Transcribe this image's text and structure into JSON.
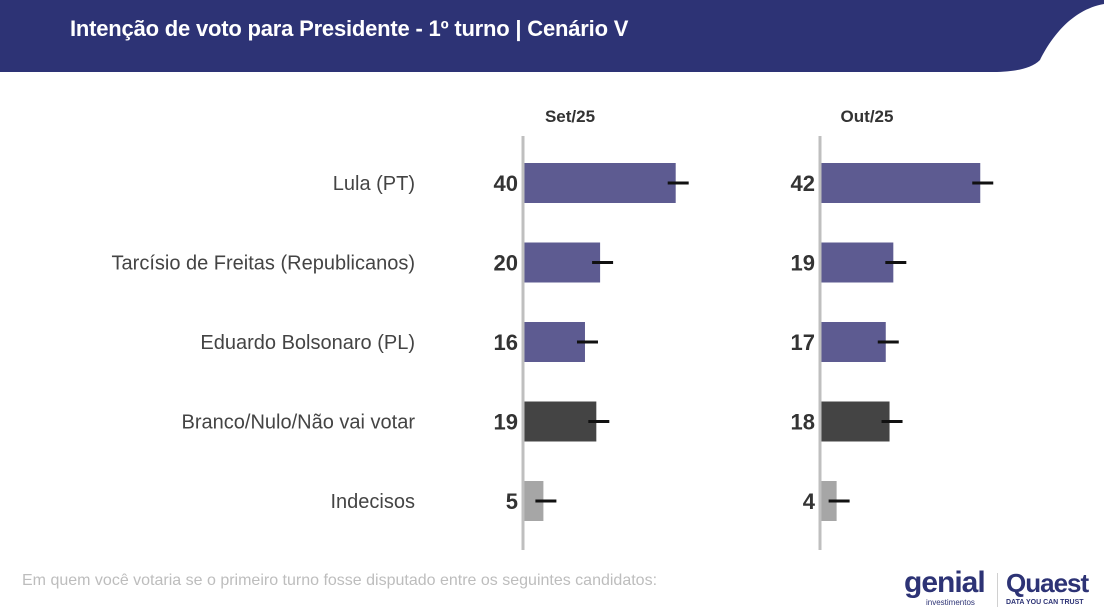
{
  "header": {
    "title": "Intenção de voto para Presidente - 1º turno | Cenário V",
    "bg_color": "#2d3375"
  },
  "footer": {
    "note": "Em quem você votaria se o primeiro turno fosse disputado entre os seguintes candidatos:",
    "logo_genial": "genial",
    "logo_genial_sub": "investimentos",
    "logo_quaest": "Quaest",
    "logo_quaest_sub": "DATA YOU CAN TRUST"
  },
  "chart_data": {
    "type": "bar",
    "orientation": "horizontal",
    "title": "Intenção de voto para Presidente - 1º turno | Cenário V",
    "categories": [
      "Lula (PT)",
      "Tarcísio de Freitas (Republicanos)",
      "Eduardo Bolsonaro (PL)",
      "Branco/Nulo/Não vai votar",
      "Indecisos"
    ],
    "category_colors": [
      "#5d5b91",
      "#5d5b91",
      "#5d5b91",
      "#444444",
      "#a6a6a6"
    ],
    "series": [
      {
        "name": "Set/25",
        "values": [
          40,
          20,
          16,
          19,
          5
        ]
      },
      {
        "name": "Out/25",
        "values": [
          42,
          19,
          17,
          18,
          4
        ]
      }
    ],
    "error_margin": 3,
    "xlim": [
      0,
      45
    ],
    "grid": false,
    "data_labels": true
  }
}
